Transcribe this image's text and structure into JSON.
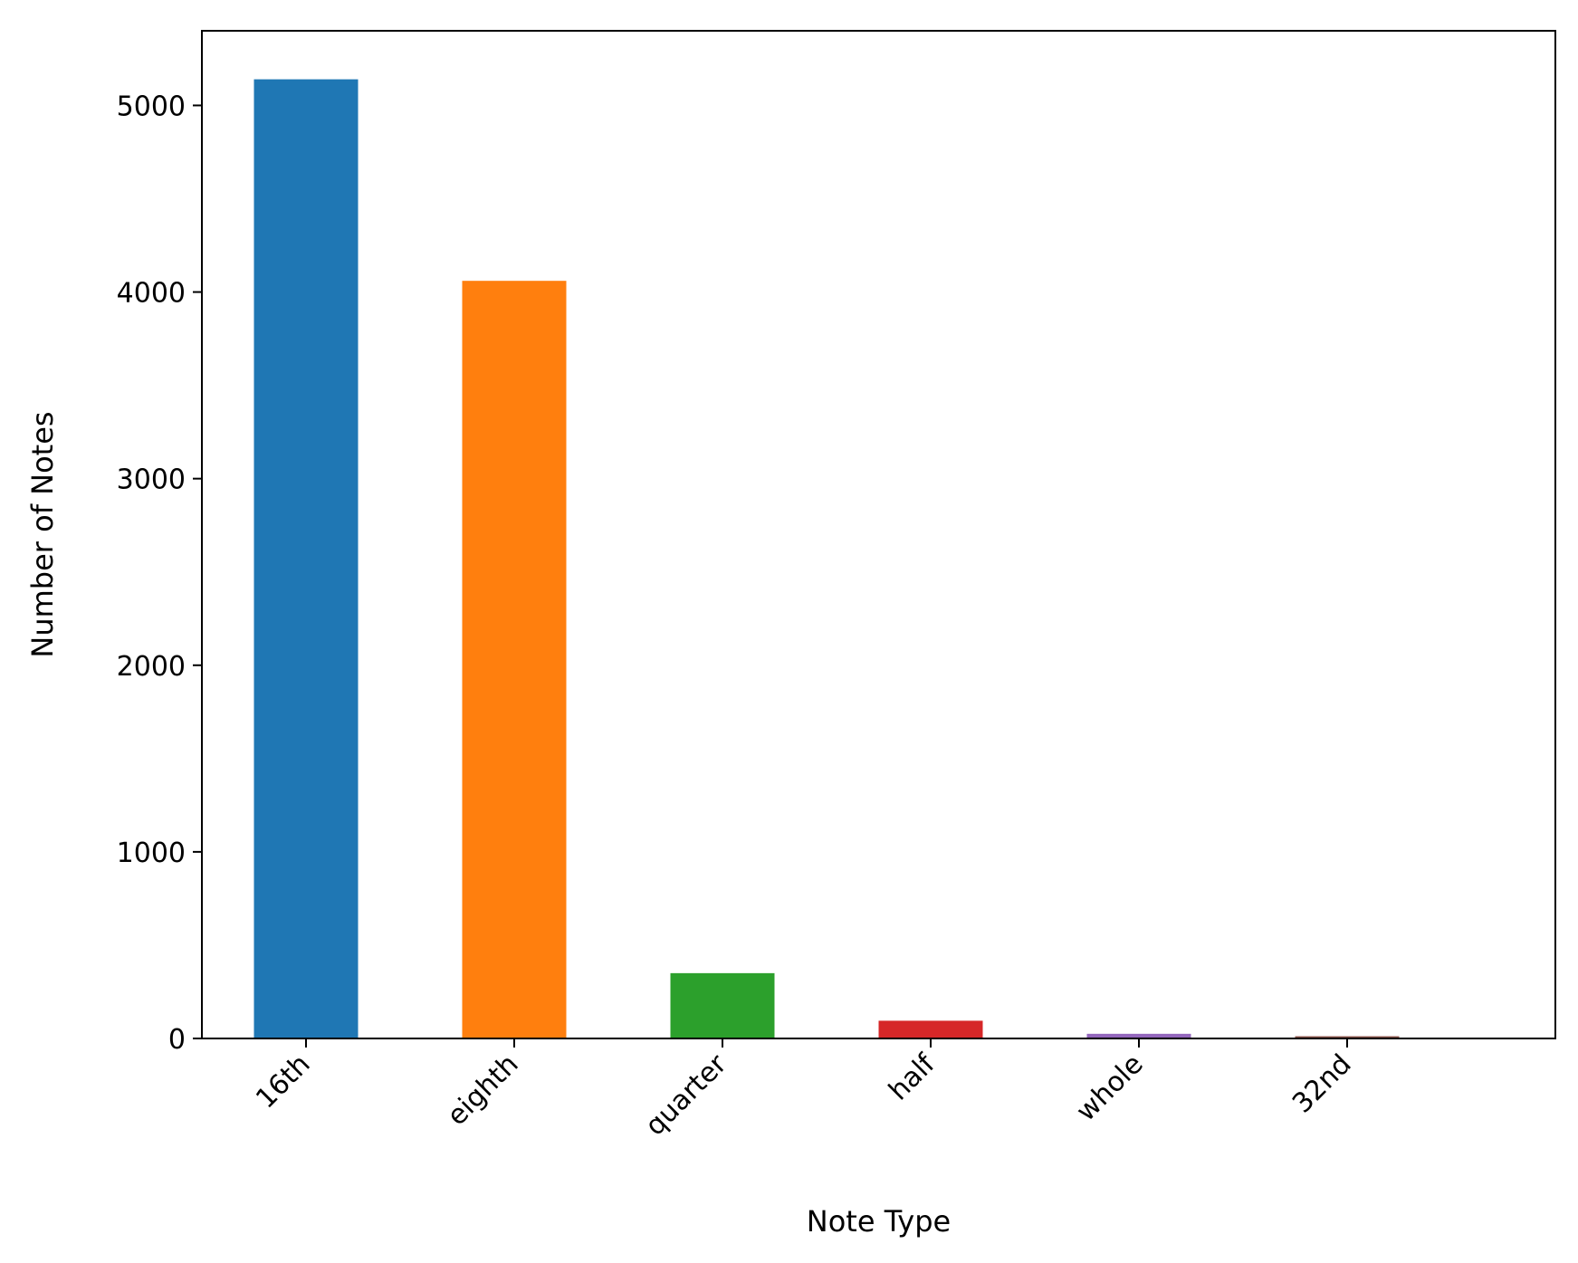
{
  "chart_data": {
    "type": "bar",
    "title": "",
    "xlabel": "Note Type",
    "ylabel": "Number of Notes",
    "categories": [
      "16th",
      "eighth",
      "quarter",
      "half",
      "whole",
      "32nd"
    ],
    "values": [
      5140,
      4060,
      350,
      95,
      25,
      12
    ],
    "colors": [
      "#1f77b4",
      "#ff7f0e",
      "#2ca02c",
      "#d62728",
      "#9467bd",
      "#8c564b"
    ],
    "ylim": [
      0,
      5400
    ],
    "yticks": [
      0,
      1000,
      2000,
      3000,
      4000,
      5000
    ],
    "grid": false,
    "legend": "none"
  }
}
